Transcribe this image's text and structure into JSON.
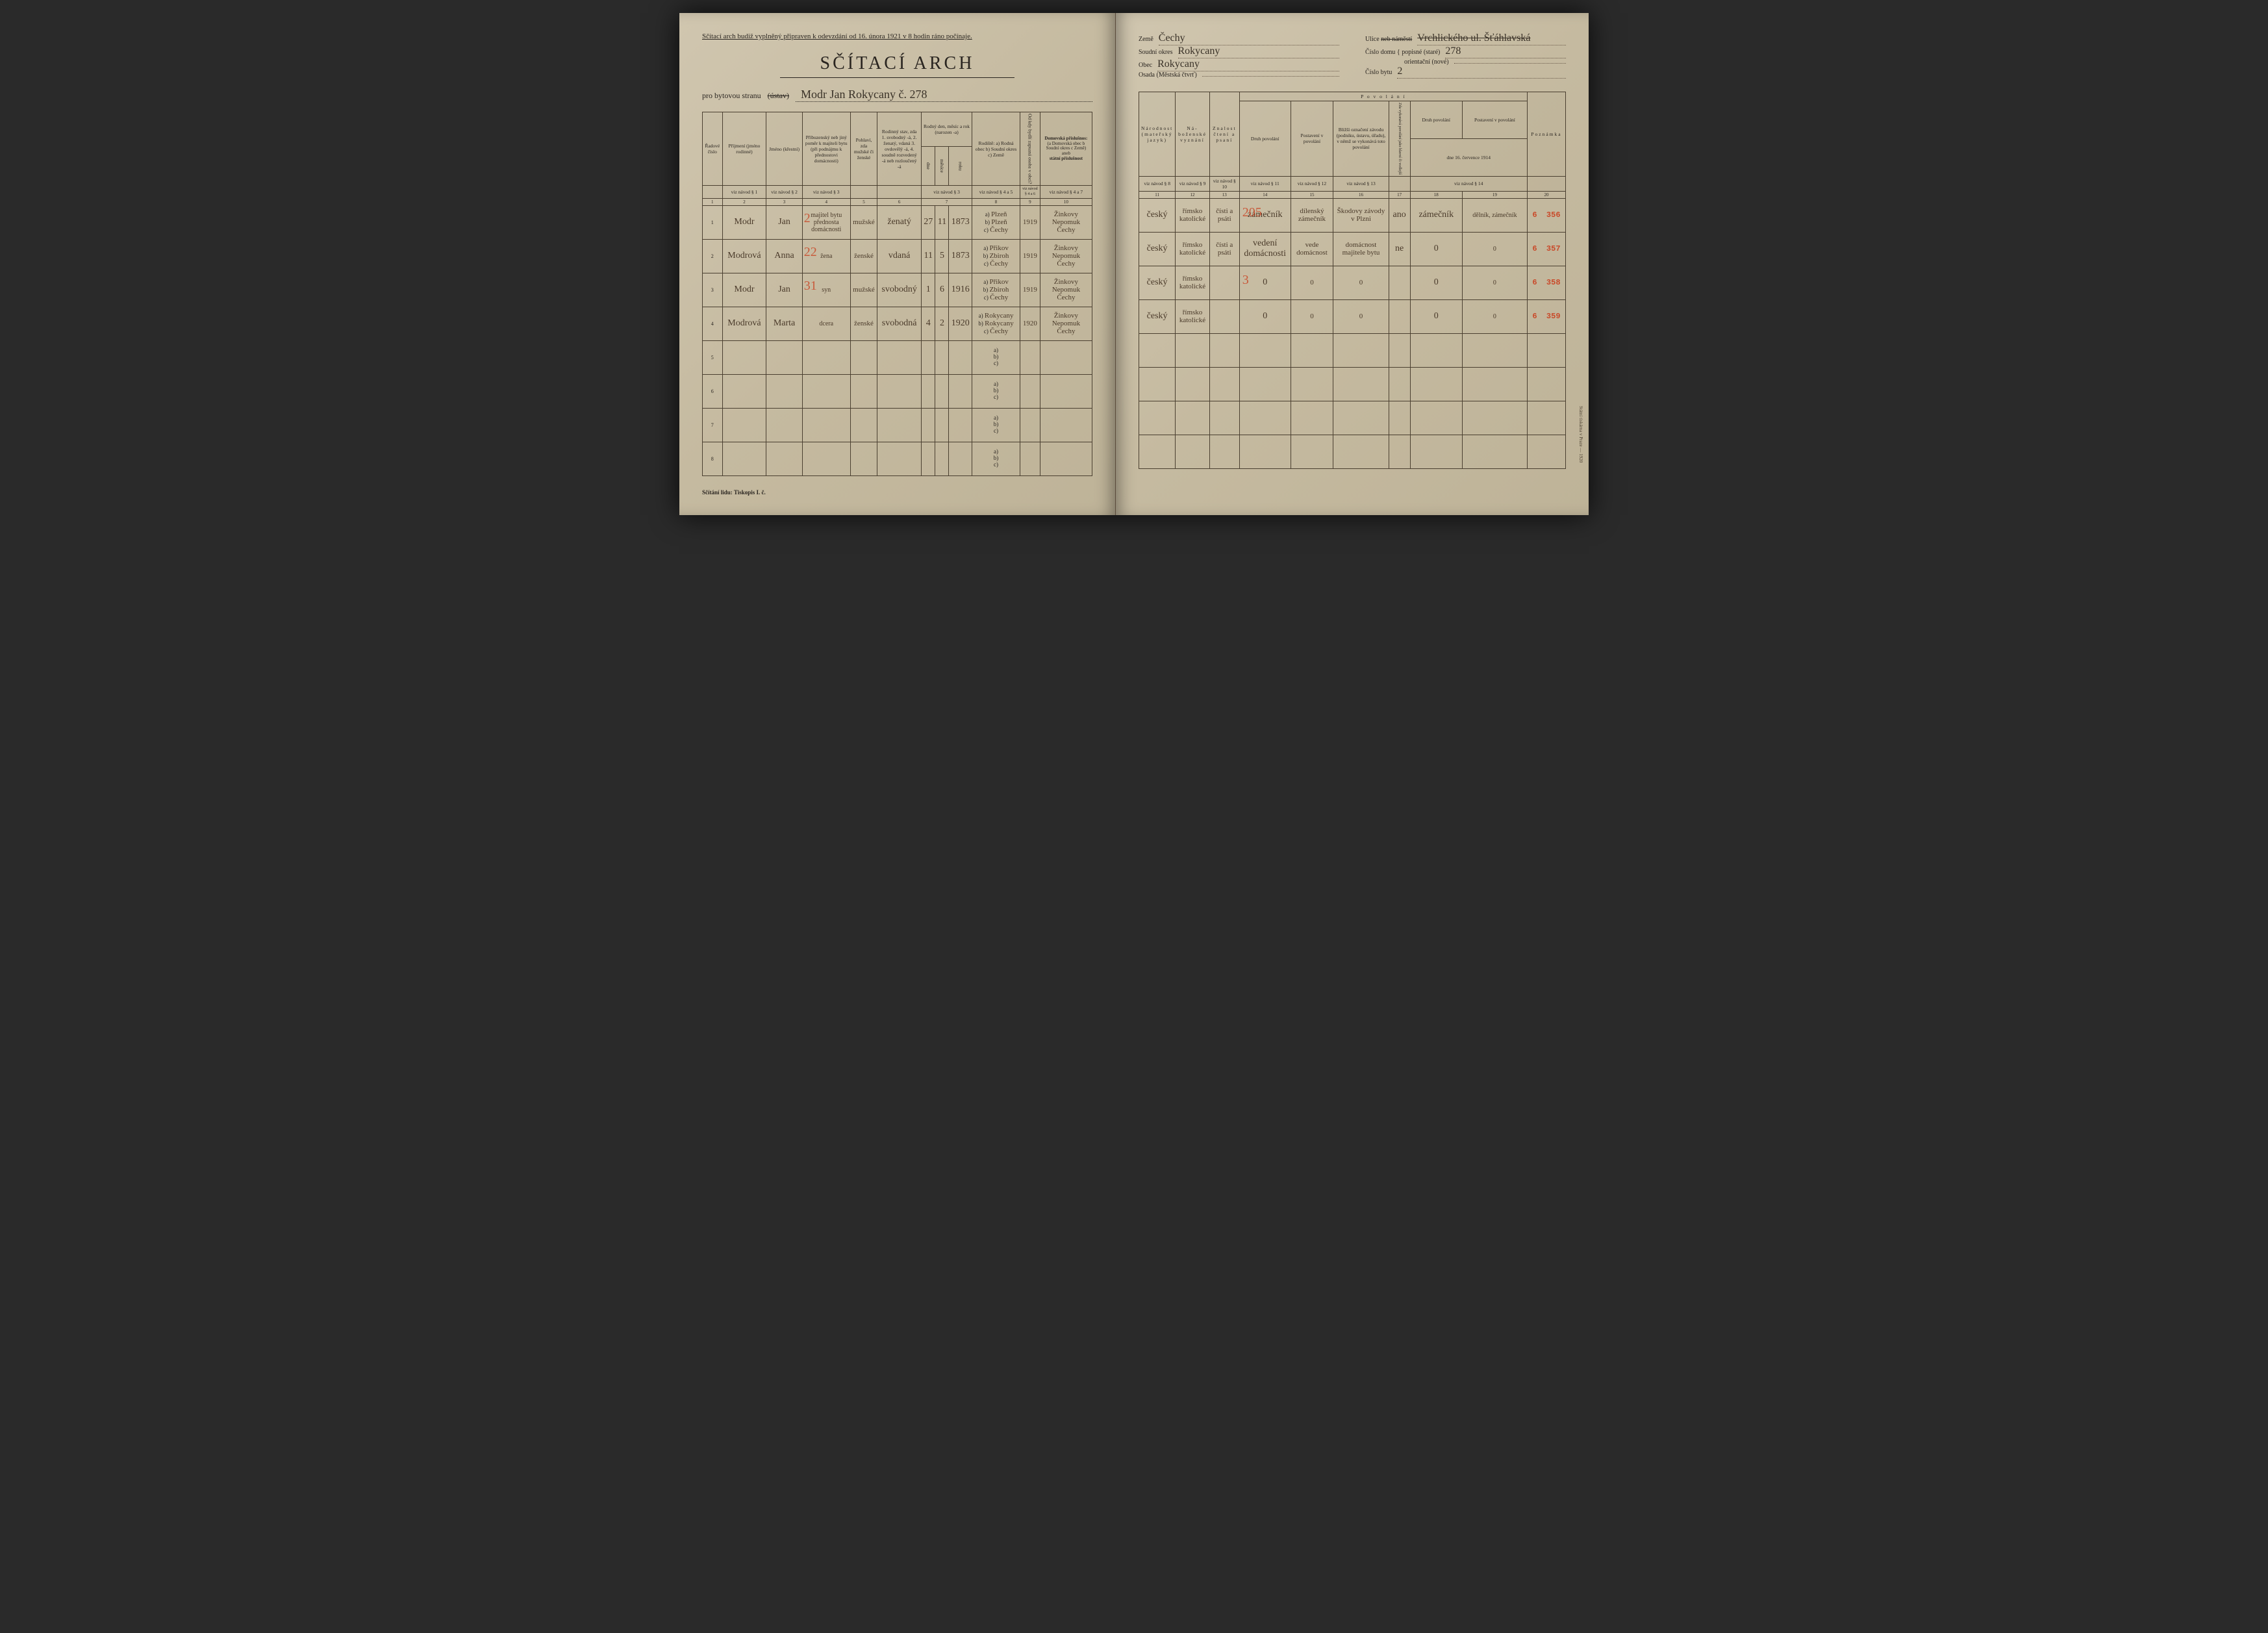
{
  "left": {
    "instruction": "Sčítací arch budiž vyplněný připraven k odevzdání od 16. února 1921 v 8 hodin ráno počínaje.",
    "title": "SČÍTACÍ ARCH",
    "subtitle_prefix": "pro bytovou stranu",
    "subtitle_strike": "(ústav)",
    "subtitle_cursive": "Modr Jan Rokycany č. 278",
    "footer": "Sčítání lidu: Tiskopis I. č.",
    "headers": {
      "h1": "Řadové číslo",
      "h2": "Příjmení (jméno rodinné)",
      "h3": "Jméno (křestní)",
      "h4": "Příbuzenský neb jiný poměr k majiteli bytu (při podnájmu k přednostovi domácnosti)",
      "h5": "Pohlaví, zda mužské či ženské",
      "h6": "Rodinný stav, zda 1. svobodný -á, 2. ženatý, vdaná 3. ovdovělý -á, 4. soudně rozvedený -á neb rozloučený -á",
      "h7a": "Rodný den, měsíc a rok (narozen -a)",
      "h7_dne": "dne",
      "h7_mesice": "měsíce",
      "h7_roku": "roku",
      "h8": "Rodiště: a) Rodná obec b) Soudní okres c) Země",
      "h9": "Od kdy bydlí zapsaná osoba v obci?",
      "h10a": "Domovská příslušnos:",
      "h10b": "(a Domovská obec b Soudní okres c Země)",
      "h10c": "aneb",
      "h10d": "státní příslušnost",
      "nav": "viz návod §"
    },
    "colnums": [
      "1",
      "2",
      "3",
      "4",
      "5",
      "6",
      "7",
      "",
      "",
      "8",
      "9",
      "10"
    ],
    "rows": [
      {
        "n": "1",
        "prijmeni": "Modr",
        "jmeno": "Jan",
        "pomer": "majitel bytu přednosta domácnosti",
        "pohlavi": "mužské",
        "stav": "ženatý",
        "dne": "27",
        "mes": "11",
        "rok": "1873",
        "rodiste": {
          "a": "Plzeň",
          "b": "Plzeň",
          "c": "Čechy"
        },
        "odkdy": "1919",
        "domov": {
          "a": "Žinkovy",
          "b": "Nepomuk",
          "c": "Čechy"
        },
        "red_over": "2"
      },
      {
        "n": "2",
        "prijmeni": "Modrová",
        "jmeno": "Anna",
        "pomer": "žena",
        "pohlavi": "ženské",
        "stav": "vdaná",
        "dne": "11",
        "mes": "5",
        "rok": "1873",
        "rodiste": {
          "a": "Přikov",
          "b": "Zbiroh",
          "c": "Čechy"
        },
        "odkdy": "1919",
        "domov": {
          "a": "Žinkovy",
          "b": "Nepomuk",
          "c": "Čechy"
        },
        "red_over": "22"
      },
      {
        "n": "3",
        "prijmeni": "Modr",
        "jmeno": "Jan",
        "pomer": "syn",
        "pohlavi": "mužské",
        "stav": "svobodný",
        "dne": "1",
        "mes": "6",
        "rok": "1916",
        "rodiste": {
          "a": "Přikov",
          "b": "Zbiroh",
          "c": "Čechy"
        },
        "odkdy": "1919",
        "domov": {
          "a": "Žinkovy",
          "b": "Nepomuk",
          "c": "Čechy"
        },
        "red_over": "31"
      },
      {
        "n": "4",
        "prijmeni": "Modrová",
        "jmeno": "Marta",
        "pomer": "dcera",
        "pohlavi": "ženské",
        "stav": "svobodná",
        "dne": "4",
        "mes": "2",
        "rok": "1920",
        "rodiste": {
          "a": "Rokycany",
          "b": "Rokycany",
          "c": "Čechy"
        },
        "odkdy": "1920",
        "domov": {
          "a": "Žinkovy",
          "b": "Nepomuk",
          "c": "Čechy"
        },
        "red_over": ""
      }
    ],
    "empty_rows": [
      "5",
      "6",
      "7",
      "8"
    ]
  },
  "right": {
    "fields_left": [
      {
        "label": "Země",
        "value": "Čechy"
      },
      {
        "label": "Soudní okres",
        "value": "Rokycany"
      },
      {
        "label": "Obec",
        "value": "Rokycany"
      },
      {
        "label": "Osada (Městská čtvrť)",
        "value": ""
      }
    ],
    "fields_right": [
      {
        "label": "Ulice",
        "strike": "neb náměstí",
        "value": "Vrchlického ul. Šťáhlavská",
        "cursive_strike": true
      },
      {
        "label": "Číslo domu",
        "sub": "popisné (staré)",
        "value": "278"
      },
      {
        "label": "",
        "sub": "orientační (nové)",
        "value": ""
      },
      {
        "label": "Číslo bytu",
        "value": "2"
      }
    ],
    "povolani": "P o v o l á n í",
    "headers": {
      "h11": "Národnost (mateřský jazyk)",
      "h12": "Ná-boženské vyznání",
      "h13": "Znalost čtení a psaní",
      "h14": "Druh povolání",
      "h15": "Postavení v povolání",
      "h16": "Bližší označení závodu (podniku, ústavu, úřadu), v němž se vykonává toto povolání",
      "h17": "Zda vykonává povolání jako hlavní či vedlejší",
      "h18": "Druh povolání",
      "h19": "Postavení v povolání",
      "h20": "Poznámka",
      "date1914": "dne 16. července 1914",
      "nav": "viz návod §"
    },
    "colnums": [
      "11",
      "12",
      "13",
      "14",
      "15",
      "16",
      "17",
      "18",
      "19",
      "20"
    ],
    "rows": [
      {
        "narod": "český",
        "nabo": "římsko katolické",
        "znalost": "čísti a psáti",
        "druh": "zámečník",
        "postav": "dílenský zámečník",
        "zavod": "Škodovy závody v Plzni",
        "hlavni": "ano",
        "druh1914": "zámečník",
        "post1914": "dělník, zámečník",
        "red": "356",
        "red_over": "205"
      },
      {
        "narod": "český",
        "nabo": "římsko katolické",
        "znalost": "čísti a psáti",
        "druh": "vedení domácnosti",
        "postav": "vede domácnost",
        "zavod": "domácnost majitele bytu",
        "hlavni": "ne",
        "druh1914": "0",
        "post1914": "0",
        "red": "357",
        "red_over": ""
      },
      {
        "narod": "český",
        "nabo": "římsko katolické",
        "znalost": "",
        "druh": "0",
        "postav": "0",
        "zavod": "0",
        "hlavni": "",
        "druh1914": "0",
        "post1914": "0",
        "red": "358",
        "red_over": "3"
      },
      {
        "narod": "český",
        "nabo": "římsko katolické",
        "znalost": "",
        "druh": "0",
        "postav": "0",
        "zavod": "0",
        "hlavni": "",
        "druh1914": "0",
        "post1914": "0",
        "red": "359",
        "red_over": ""
      }
    ],
    "empty_rows": 4,
    "printer": "Státní tiskárna v Praze — 1920"
  },
  "style": {
    "paper": "#c9bfa8",
    "ink": "#2a2520",
    "red": "#c94a2a",
    "border": "#4a3f30"
  }
}
